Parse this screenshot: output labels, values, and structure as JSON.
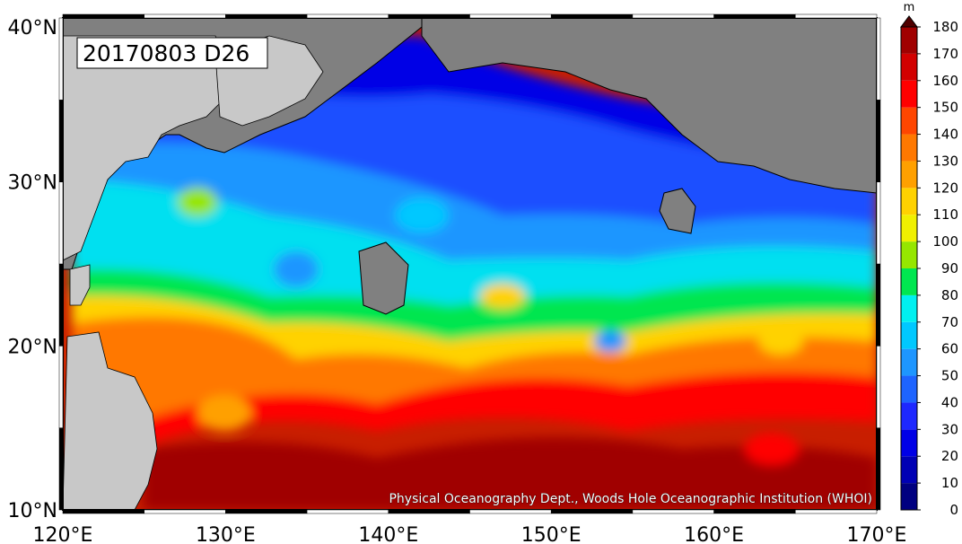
{
  "map": {
    "date_label": "20170803 D26",
    "credit": "Physical Oceanography Dept., Woods Hole Oceanographic Institution (WHOI)",
    "lon_ticks": [
      "120°E",
      "130°E",
      "140°E",
      "150°E",
      "160°E",
      "170°E"
    ],
    "lat_ticks": [
      "40°N",
      "30°N",
      "20°N",
      "10°N"
    ],
    "lon_range": [
      120,
      170
    ],
    "lat_range": [
      10,
      40
    ],
    "land_color": "#808080",
    "foreign_land_color": "#c8c8c8"
  },
  "colorbar": {
    "unit": "m",
    "ticks": [
      "180",
      "170",
      "160",
      "150",
      "140",
      "130",
      "120",
      "110",
      "100",
      "90",
      "80",
      "70",
      "60",
      "50",
      "40",
      "30",
      "20",
      "10",
      "0"
    ],
    "colors": [
      "#000080",
      "#0000b4",
      "#0000e6",
      "#1e28ff",
      "#1e64ff",
      "#1e96ff",
      "#00c8ff",
      "#00f0f0",
      "#00e650",
      "#96e600",
      "#f0f000",
      "#ffd200",
      "#ffa000",
      "#ff7800",
      "#ff4600",
      "#ff0000",
      "#d20000",
      "#a00000",
      "#500000"
    ]
  }
}
